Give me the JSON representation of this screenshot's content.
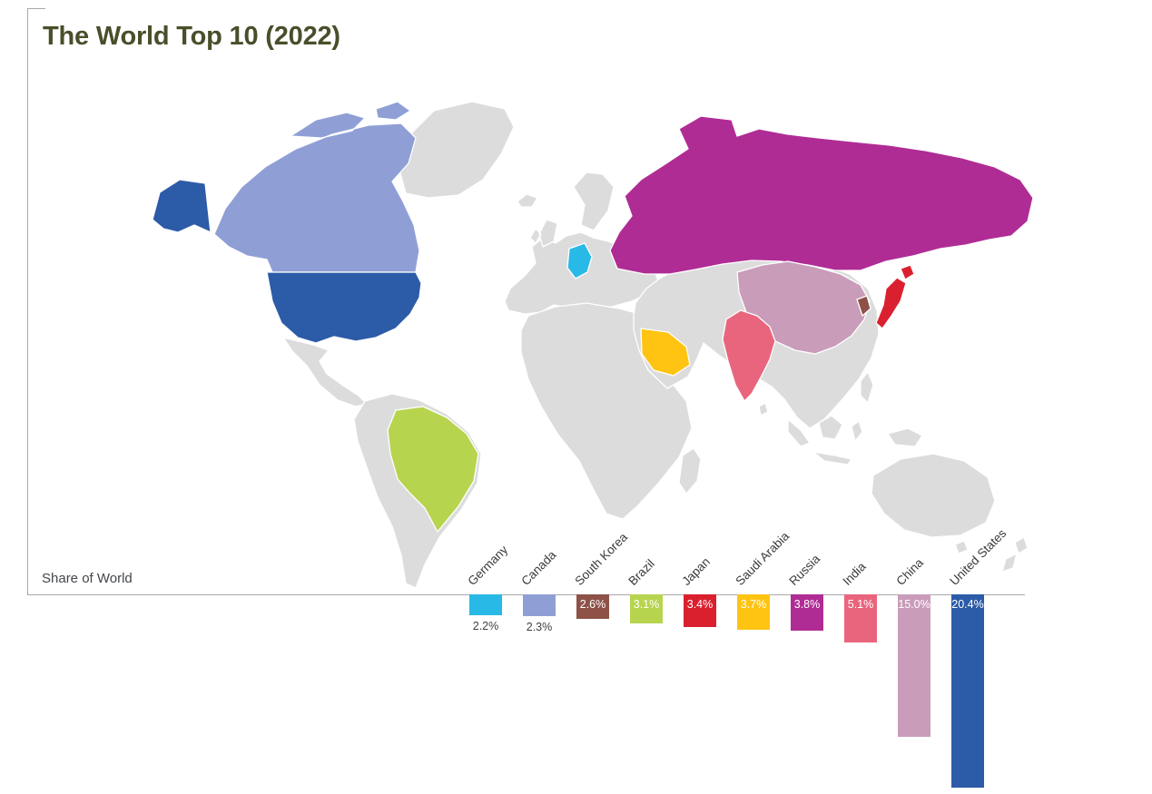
{
  "page": {
    "title": "The World Top 10 (2022)",
    "axis_label": "Share of World"
  },
  "chart_data": {
    "type": "bar",
    "title": "The World Top 10 (2022)",
    "ylabel": "Share of World",
    "unit": "%",
    "bar_direction": "downward-from-baseline",
    "legend": "none",
    "categories": [
      "Germany",
      "Canada",
      "South Korea",
      "Brazil",
      "Japan",
      "Saudi Arabia",
      "Russia",
      "India",
      "China",
      "United States"
    ],
    "values": [
      2.2,
      2.3,
      2.6,
      3.1,
      3.4,
      3.7,
      3.8,
      5.1,
      15.0,
      20.4
    ],
    "value_labels": [
      "2.2%",
      "2.3%",
      "2.6%",
      "3.1%",
      "3.4%",
      "3.7%",
      "3.8%",
      "5.1%",
      "15.0%",
      "20.4%"
    ],
    "colors": [
      "#29b9e7",
      "#8f9fd6",
      "#8d5148",
      "#b7d44e",
      "#da1f2e",
      "#ffc412",
      "#b02c95",
      "#e9657d",
      "#c99cba",
      "#2c5ba8"
    ],
    "map": {
      "style": "world-choropleth",
      "default_land_color": "#dcdcdc",
      "highlighted_countries": [
        "Germany",
        "Canada",
        "South Korea",
        "Brazil",
        "Japan",
        "Saudi Arabia",
        "Russia",
        "India",
        "China",
        "United States"
      ]
    }
  }
}
